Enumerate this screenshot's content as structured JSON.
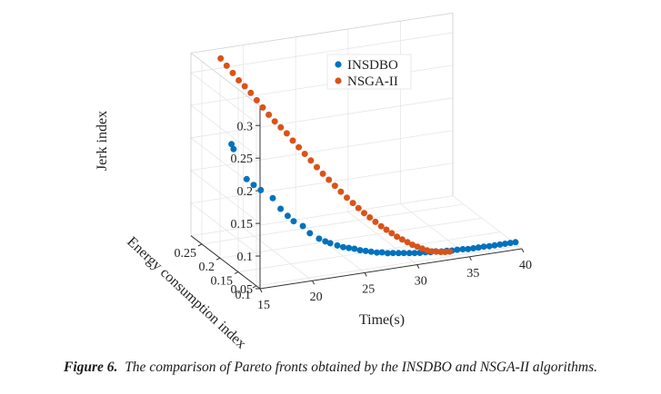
{
  "chart_data": {
    "type": "scatter3d",
    "x_label": "Time(s)",
    "y_label": "Energy consumption index",
    "z_label": "Jerk index",
    "x_ticks": [
      "15",
      "20",
      "25",
      "30",
      "35",
      "40"
    ],
    "y_ticks": [
      "0.1",
      "0.15",
      "0.2",
      "0.25"
    ],
    "z_ticks": [
      "0.05",
      "0.1",
      "0.15",
      "0.2",
      "0.25",
      "0.3"
    ],
    "x_range": [
      15,
      40
    ],
    "y_range": [
      0.09,
      0.28
    ],
    "z_range": [
      0.05,
      0.33
    ],
    "legend": {
      "position": "top-right"
    },
    "series": [
      {
        "name": "INSDBO",
        "color": "#0072BD",
        "points": [
          [
            15.4,
            0.18,
            0.232
          ],
          [
            15.6,
            0.18,
            0.224
          ],
          [
            16.5,
            0.17,
            0.18
          ],
          [
            17.0,
            0.165,
            0.172
          ],
          [
            17.5,
            0.16,
            0.165
          ],
          [
            18.3,
            0.15,
            0.155
          ],
          [
            18.7,
            0.14,
            0.142
          ],
          [
            19.2,
            0.135,
            0.132
          ],
          [
            19.6,
            0.13,
            0.125
          ],
          [
            20.3,
            0.125,
            0.118
          ],
          [
            20.8,
            0.12,
            0.108
          ],
          [
            21.5,
            0.115,
            0.1
          ],
          [
            22.0,
            0.112,
            0.096
          ],
          [
            22.4,
            0.11,
            0.093
          ],
          [
            23.0,
            0.108,
            0.089
          ],
          [
            23.5,
            0.106,
            0.086
          ],
          [
            24.0,
            0.105,
            0.084
          ],
          [
            24.5,
            0.104,
            0.082
          ],
          [
            25.0,
            0.103,
            0.079
          ],
          [
            25.5,
            0.102,
            0.077
          ],
          [
            26.0,
            0.101,
            0.075
          ],
          [
            26.5,
            0.1,
            0.073
          ],
          [
            27.0,
            0.1,
            0.072
          ],
          [
            27.5,
            0.099,
            0.07
          ],
          [
            28.0,
            0.099,
            0.069
          ],
          [
            28.5,
            0.098,
            0.068
          ],
          [
            29.0,
            0.098,
            0.067
          ],
          [
            29.5,
            0.097,
            0.066
          ],
          [
            30.0,
            0.097,
            0.065
          ],
          [
            30.5,
            0.097,
            0.064
          ],
          [
            31.0,
            0.096,
            0.064
          ],
          [
            31.5,
            0.096,
            0.063
          ],
          [
            32.0,
            0.096,
            0.063
          ],
          [
            32.5,
            0.095,
            0.062
          ],
          [
            33.0,
            0.095,
            0.062
          ],
          [
            33.5,
            0.095,
            0.061
          ],
          [
            34.0,
            0.095,
            0.061
          ],
          [
            34.5,
            0.094,
            0.061
          ],
          [
            35.0,
            0.094,
            0.06
          ],
          [
            35.5,
            0.094,
            0.06
          ],
          [
            36.0,
            0.094,
            0.06
          ],
          [
            36.5,
            0.094,
            0.06
          ],
          [
            37.0,
            0.093,
            0.06
          ],
          [
            37.5,
            0.093,
            0.06
          ],
          [
            38.0,
            0.093,
            0.06
          ],
          [
            38.5,
            0.093,
            0.06
          ],
          [
            39.0,
            0.093,
            0.06
          ],
          [
            39.5,
            0.093,
            0.06
          ]
        ]
      },
      {
        "name": "NSGA-II",
        "color": "#D95319",
        "points": [
          [
            16.8,
            0.25,
            0.33
          ],
          [
            17.2,
            0.245,
            0.32
          ],
          [
            17.6,
            0.24,
            0.31
          ],
          [
            18.0,
            0.235,
            0.3
          ],
          [
            18.4,
            0.23,
            0.292
          ],
          [
            18.8,
            0.225,
            0.283
          ],
          [
            19.2,
            0.22,
            0.273
          ],
          [
            19.6,
            0.215,
            0.263
          ],
          [
            20.0,
            0.21,
            0.253
          ],
          [
            20.4,
            0.205,
            0.244
          ],
          [
            20.8,
            0.2,
            0.236
          ],
          [
            21.2,
            0.195,
            0.228
          ],
          [
            21.6,
            0.19,
            0.218
          ],
          [
            22.0,
            0.185,
            0.209
          ],
          [
            22.4,
            0.18,
            0.2
          ],
          [
            22.8,
            0.175,
            0.191
          ],
          [
            23.2,
            0.17,
            0.182
          ],
          [
            23.6,
            0.165,
            0.173
          ],
          [
            24.0,
            0.16,
            0.165
          ],
          [
            24.4,
            0.155,
            0.157
          ],
          [
            24.8,
            0.15,
            0.149
          ],
          [
            25.2,
            0.145,
            0.141
          ],
          [
            25.6,
            0.14,
            0.134
          ],
          [
            26.0,
            0.136,
            0.127
          ],
          [
            26.4,
            0.132,
            0.12
          ],
          [
            26.8,
            0.128,
            0.114
          ],
          [
            27.2,
            0.124,
            0.108
          ],
          [
            27.6,
            0.12,
            0.102
          ],
          [
            28.0,
            0.117,
            0.097
          ],
          [
            28.4,
            0.114,
            0.092
          ],
          [
            28.8,
            0.111,
            0.087
          ],
          [
            29.2,
            0.108,
            0.083
          ],
          [
            29.6,
            0.105,
            0.079
          ],
          [
            30.0,
            0.103,
            0.075
          ],
          [
            30.4,
            0.101,
            0.072
          ],
          [
            30.8,
            0.099,
            0.069
          ],
          [
            31.2,
            0.097,
            0.066
          ],
          [
            31.6,
            0.096,
            0.064
          ],
          [
            32.0,
            0.095,
            0.063
          ],
          [
            32.4,
            0.094,
            0.062
          ],
          [
            32.8,
            0.094,
            0.061
          ],
          [
            33.2,
            0.093,
            0.061
          ]
        ]
      }
    ]
  },
  "caption": {
    "label": "Figure 6.",
    "text": "The comparison of Pareto fronts obtained by the INSDBO and NSGA-II algorithms."
  }
}
